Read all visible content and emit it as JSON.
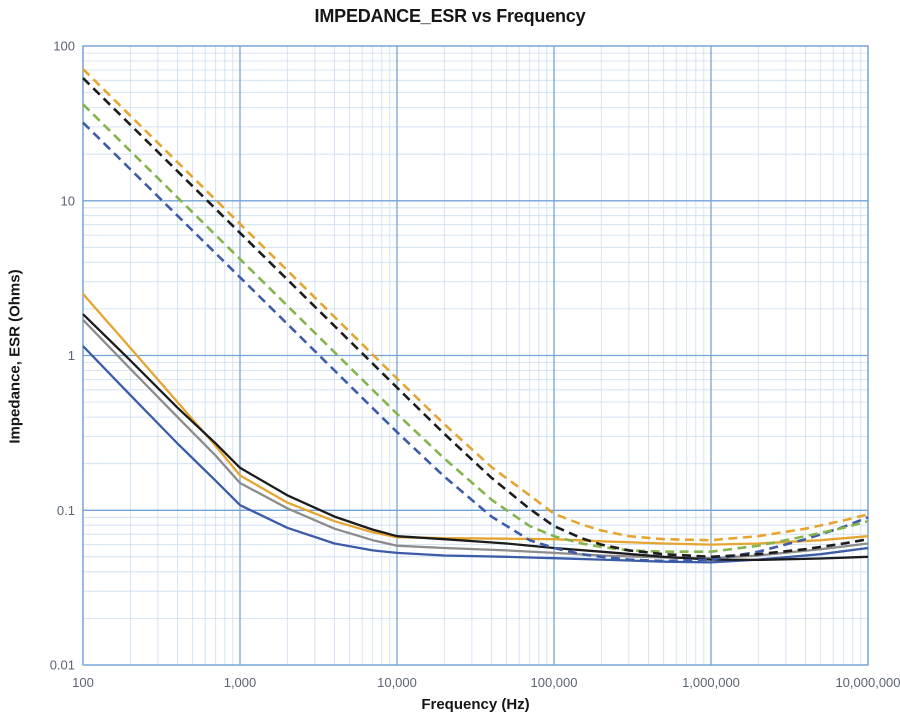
{
  "chart_data": {
    "type": "line",
    "title": "IMPEDANCE_ESR vs Frequency",
    "xlabel": "Frequency (Hz)",
    "ylabel": "Impedance, ESR (Ohms)",
    "x_scale": "log",
    "y_scale": "log",
    "xlim": [
      100,
      10000000
    ],
    "ylim": [
      0.01,
      100
    ],
    "grid": {
      "major": true,
      "minor": true,
      "major_color": "#76a3d6",
      "minor_color": "#cbdef2"
    },
    "legend": "none",
    "x_ticks": [
      {
        "value": 100,
        "label": "100"
      },
      {
        "value": 1000,
        "label": "1,000"
      },
      {
        "value": 10000,
        "label": "10,000"
      },
      {
        "value": 100000,
        "label": "100,000"
      },
      {
        "value": 1000000,
        "label": "1,000,000"
      },
      {
        "value": 10000000,
        "label": "10,000,000"
      }
    ],
    "y_ticks": [
      {
        "value": 100,
        "label": "100"
      },
      {
        "value": 10,
        "label": "10"
      },
      {
        "value": 1,
        "label": "1"
      },
      {
        "value": 0.1,
        "label": "0.1"
      },
      {
        "value": 0.01,
        "label": "0.01"
      }
    ],
    "series": [
      {
        "id": "esr-yellow-solid",
        "group": "ESR",
        "style": "solid",
        "color": "#e5a530",
        "points": [
          [
            100,
            2.5
          ],
          [
            200,
            1.12
          ],
          [
            400,
            0.5
          ],
          [
            700,
            0.26
          ],
          [
            1000,
            0.168
          ],
          [
            2000,
            0.112
          ],
          [
            4000,
            0.085
          ],
          [
            7000,
            0.072
          ],
          [
            10000,
            0.067
          ],
          [
            20000,
            0.066
          ],
          [
            50000,
            0.0655
          ],
          [
            100000,
            0.065
          ],
          [
            200000,
            0.063
          ],
          [
            500000,
            0.061
          ],
          [
            1000000,
            0.06
          ],
          [
            2000000,
            0.061
          ],
          [
            5000000,
            0.064
          ],
          [
            10000000,
            0.068
          ]
        ]
      },
      {
        "id": "esr-gray-solid",
        "group": "ESR",
        "style": "solid",
        "color": "#8c8c8c",
        "points": [
          [
            100,
            1.7
          ],
          [
            200,
            0.82
          ],
          [
            400,
            0.4
          ],
          [
            700,
            0.225
          ],
          [
            1000,
            0.15
          ],
          [
            2000,
            0.103
          ],
          [
            4000,
            0.076
          ],
          [
            7000,
            0.064
          ],
          [
            10000,
            0.059
          ],
          [
            20000,
            0.057
          ],
          [
            50000,
            0.055
          ],
          [
            100000,
            0.053
          ],
          [
            200000,
            0.051
          ],
          [
            500000,
            0.0495
          ],
          [
            1000000,
            0.049
          ],
          [
            2000000,
            0.051
          ],
          [
            5000000,
            0.056
          ],
          [
            10000000,
            0.061
          ]
        ]
      },
      {
        "id": "esr-blue-solid",
        "group": "ESR",
        "style": "solid",
        "color": "#3d5ca8",
        "points": [
          [
            100,
            1.15
          ],
          [
            200,
            0.555
          ],
          [
            400,
            0.27
          ],
          [
            700,
            0.155
          ],
          [
            1000,
            0.108
          ],
          [
            2000,
            0.077
          ],
          [
            4000,
            0.061
          ],
          [
            7000,
            0.055
          ],
          [
            10000,
            0.053
          ],
          [
            20000,
            0.051
          ],
          [
            50000,
            0.05
          ],
          [
            100000,
            0.049
          ],
          [
            200000,
            0.048
          ],
          [
            500000,
            0.0465
          ],
          [
            1000000,
            0.046
          ],
          [
            2000000,
            0.048
          ],
          [
            5000000,
            0.052
          ],
          [
            10000000,
            0.057
          ]
        ]
      },
      {
        "id": "esr-black-solid",
        "group": "ESR",
        "style": "solid",
        "color": "#1c1c1c",
        "points": [
          [
            100,
            1.85
          ],
          [
            200,
            0.93
          ],
          [
            400,
            0.46
          ],
          [
            700,
            0.27
          ],
          [
            1000,
            0.188
          ],
          [
            2000,
            0.125
          ],
          [
            4000,
            0.091
          ],
          [
            7000,
            0.075
          ],
          [
            10000,
            0.068
          ],
          [
            20000,
            0.065
          ],
          [
            50000,
            0.061
          ],
          [
            100000,
            0.057
          ],
          [
            200000,
            0.054
          ],
          [
            500000,
            0.05
          ],
          [
            1000000,
            0.048
          ],
          [
            2000000,
            0.0478
          ],
          [
            5000000,
            0.0488
          ],
          [
            10000000,
            0.05
          ]
        ]
      },
      {
        "id": "impedance-blue-dashed",
        "group": "Impedance",
        "style": "dashed",
        "color": "#3d5ca8",
        "points": [
          [
            100,
            32
          ],
          [
            1000,
            3.2
          ],
          [
            10000,
            0.32
          ],
          [
            20000,
            0.165
          ],
          [
            40000,
            0.091
          ],
          [
            70000,
            0.064
          ],
          [
            100000,
            0.057
          ],
          [
            150000,
            0.052
          ],
          [
            200000,
            0.05
          ],
          [
            300000,
            0.048
          ],
          [
            500000,
            0.047
          ],
          [
            1000000,
            0.048
          ],
          [
            2000000,
            0.054
          ],
          [
            4000000,
            0.065
          ],
          [
            7000000,
            0.078
          ],
          [
            10000000,
            0.09
          ]
        ]
      },
      {
        "id": "impedance-green-dashed",
        "group": "Impedance",
        "style": "dashed",
        "color": "#84b44c",
        "points": [
          [
            100,
            42
          ],
          [
            1000,
            4.2
          ],
          [
            10000,
            0.42
          ],
          [
            20000,
            0.216
          ],
          [
            40000,
            0.117
          ],
          [
            70000,
            0.079
          ],
          [
            100000,
            0.068
          ],
          [
            150000,
            0.061
          ],
          [
            200000,
            0.058
          ],
          [
            300000,
            0.055
          ],
          [
            500000,
            0.054
          ],
          [
            1000000,
            0.054
          ],
          [
            2000000,
            0.059
          ],
          [
            4000000,
            0.068
          ],
          [
            7000000,
            0.077
          ],
          [
            10000000,
            0.085
          ]
        ]
      },
      {
        "id": "impedance-black-dashed",
        "group": "Impedance",
        "style": "dashed",
        "color": "#1c1c1c",
        "points": [
          [
            100,
            62
          ],
          [
            1000,
            6.2
          ],
          [
            10000,
            0.62
          ],
          [
            20000,
            0.312
          ],
          [
            40000,
            0.162
          ],
          [
            70000,
            0.102
          ],
          [
            100000,
            0.079
          ],
          [
            150000,
            0.066
          ],
          [
            200000,
            0.06
          ],
          [
            300000,
            0.055
          ],
          [
            500000,
            0.052
          ],
          [
            1000000,
            0.05
          ],
          [
            2000000,
            0.052
          ],
          [
            4000000,
            0.056
          ],
          [
            7000000,
            0.061
          ],
          [
            10000000,
            0.065
          ]
        ]
      },
      {
        "id": "impedance-orange-dashed",
        "group": "Impedance",
        "style": "dashed",
        "color": "#e5a530",
        "points": [
          [
            100,
            71
          ],
          [
            1000,
            7.1
          ],
          [
            10000,
            0.71
          ],
          [
            20000,
            0.36
          ],
          [
            40000,
            0.19
          ],
          [
            70000,
            0.125
          ],
          [
            100000,
            0.095
          ],
          [
            150000,
            0.081
          ],
          [
            200000,
            0.074
          ],
          [
            300000,
            0.068
          ],
          [
            500000,
            0.065
          ],
          [
            1000000,
            0.064
          ],
          [
            2000000,
            0.068
          ],
          [
            4000000,
            0.076
          ],
          [
            7000000,
            0.086
          ],
          [
            10000000,
            0.094
          ]
        ]
      }
    ]
  }
}
